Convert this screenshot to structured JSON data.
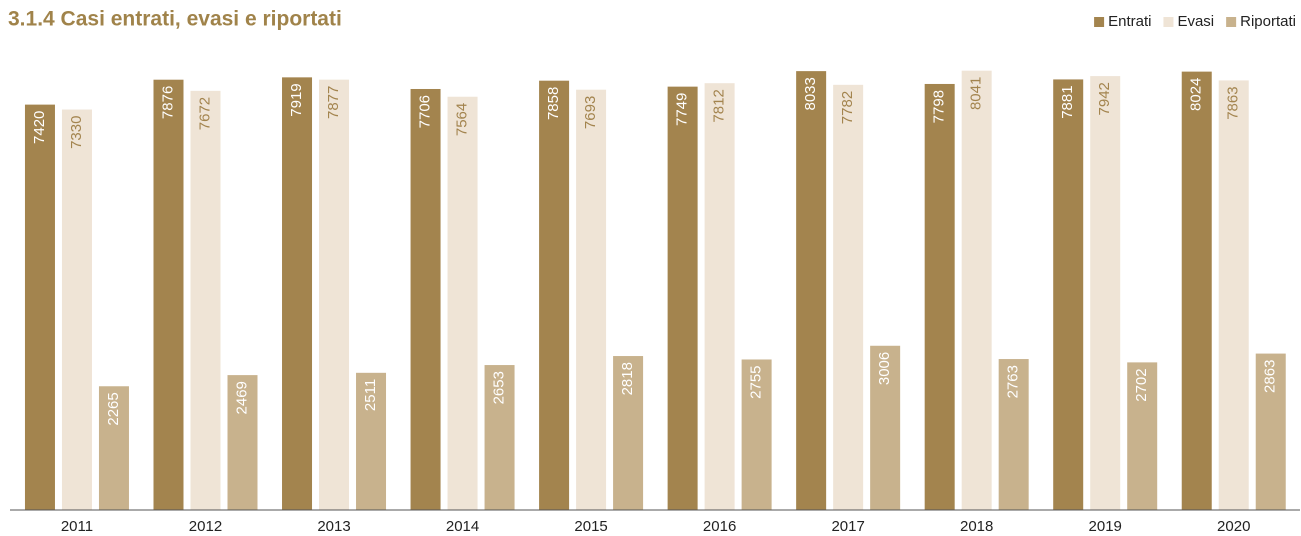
{
  "chart_data": {
    "type": "bar",
    "title": "3.1.4 Casi entrati, evasi e riportati",
    "categories": [
      "2011",
      "2012",
      "2013",
      "2014",
      "2015",
      "2016",
      "2017",
      "2018",
      "2019",
      "2020"
    ],
    "series": [
      {
        "name": "Entrati",
        "color": "#a3844e",
        "values": [
          7420,
          7876,
          7919,
          7706,
          7858,
          7749,
          8033,
          7798,
          7881,
          8024
        ]
      },
      {
        "name": "Evasi",
        "color": "#efe4d6",
        "values": [
          7330,
          7672,
          7877,
          7564,
          7693,
          7812,
          7782,
          8041,
          7942,
          7863
        ]
      },
      {
        "name": "Riportati",
        "color": "#c8b28d",
        "values": [
          2265,
          2469,
          2511,
          2653,
          2818,
          2755,
          3006,
          2763,
          2702,
          2863
        ]
      }
    ],
    "ylim": [
      0,
      8200
    ],
    "legend": "top-right"
  }
}
